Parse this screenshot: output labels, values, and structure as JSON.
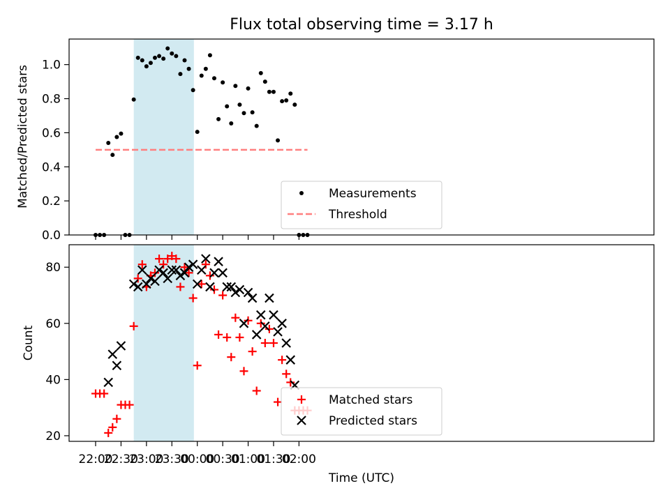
{
  "figure": {
    "title": "Flux total observing time = 3.17 h",
    "shaded_color": "#add8e6"
  },
  "chart_data": [
    {
      "type": "scatter",
      "panel": "top",
      "ylabel": "Matched/Predicted stars",
      "xlabel": "",
      "ylim": [
        0,
        1.15
      ],
      "yticks": [
        0.0,
        0.2,
        0.4,
        0.6,
        0.8,
        1.0
      ],
      "ytick_labels": [
        "0.0",
        "0.2",
        "0.4",
        "0.6",
        "0.8",
        "1.0"
      ],
      "shaded_region": [
        "22:45",
        "23:56"
      ],
      "legend": {
        "location": "lower-center",
        "entries": [
          "Measurements",
          "Threshold"
        ]
      },
      "series": [
        {
          "name": "Measurements",
          "marker": "dot",
          "color": "#000000",
          "points": [
            [
              "22:00",
              0.0
            ],
            [
              "22:05",
              0.0
            ],
            [
              "22:10",
              0.0
            ],
            [
              "22:15",
              0.54
            ],
            [
              "22:20",
              0.47
            ],
            [
              "22:25",
              0.575
            ],
            [
              "22:30",
              0.595
            ],
            [
              "22:35",
              0.0
            ],
            [
              "22:40",
              0.0
            ],
            [
              "22:45",
              0.795
            ],
            [
              "22:50",
              1.04
            ],
            [
              "22:55",
              1.025
            ],
            [
              "23:00",
              0.99
            ],
            [
              "23:05",
              1.01
            ],
            [
              "23:10",
              1.04
            ],
            [
              "23:15",
              1.05
            ],
            [
              "23:20",
              1.035
            ],
            [
              "23:25",
              1.095
            ],
            [
              "23:30",
              1.065
            ],
            [
              "23:35",
              1.05
            ],
            [
              "23:40",
              0.945
            ],
            [
              "23:45",
              1.025
            ],
            [
              "23:50",
              0.975
            ],
            [
              "23:55",
              0.85
            ],
            [
              "00:00",
              0.605
            ],
            [
              "00:05",
              0.935
            ],
            [
              "00:10",
              0.975
            ],
            [
              "00:15",
              1.055
            ],
            [
              "00:20",
              0.92
            ],
            [
              "00:25",
              0.68
            ],
            [
              "00:30",
              0.895
            ],
            [
              "00:35",
              0.755
            ],
            [
              "00:40",
              0.655
            ],
            [
              "00:45",
              0.875
            ],
            [
              "00:50",
              0.765
            ],
            [
              "00:55",
              0.715
            ],
            [
              "01:00",
              0.86
            ],
            [
              "01:05",
              0.72
            ],
            [
              "01:10",
              0.64
            ],
            [
              "01:15",
              0.95
            ],
            [
              "01:20",
              0.9
            ],
            [
              "01:25",
              0.84
            ],
            [
              "01:30",
              0.84
            ],
            [
              "01:35",
              0.555
            ],
            [
              "01:40",
              0.785
            ],
            [
              "01:45",
              0.79
            ],
            [
              "01:50",
              0.83
            ],
            [
              "01:55",
              0.765
            ],
            [
              "02:00",
              0.0
            ],
            [
              "02:05",
              0.0
            ],
            [
              "02:10",
              0.0
            ]
          ]
        },
        {
          "name": "Threshold",
          "marker": "dashed-line",
          "color": "#ff7f7f",
          "points": [
            [
              "22:00",
              0.5
            ],
            [
              "02:10",
              0.5
            ]
          ]
        }
      ]
    },
    {
      "type": "scatter",
      "panel": "bottom",
      "ylabel": "Count",
      "xlabel": "Time (UTC)",
      "ylim": [
        18,
        88
      ],
      "yticks": [
        20,
        40,
        60,
        80
      ],
      "ytick_labels": [
        "20",
        "40",
        "60",
        "80"
      ],
      "xticks": [
        "22:00",
        "22:30",
        "23:00",
        "23:30",
        "00:00",
        "00:30",
        "01:00",
        "01:30",
        "02:00"
      ],
      "shaded_region": [
        "22:45",
        "23:56"
      ],
      "legend": {
        "location": "lower-center",
        "entries": [
          "Matched stars",
          "Predicted stars"
        ]
      },
      "series": [
        {
          "name": "Matched stars",
          "marker": "plus",
          "color": "#ff0000",
          "points": [
            [
              "22:00",
              35
            ],
            [
              "22:05",
              35
            ],
            [
              "22:10",
              35
            ],
            [
              "22:15",
              21
            ],
            [
              "22:20",
              23
            ],
            [
              "22:25",
              26
            ],
            [
              "22:30",
              31
            ],
            [
              "22:35",
              31
            ],
            [
              "22:40",
              31
            ],
            [
              "22:45",
              59
            ],
            [
              "22:50",
              76
            ],
            [
              "22:55",
              81
            ],
            [
              "23:00",
              73
            ],
            [
              "23:05",
              77
            ],
            [
              "23:10",
              78
            ],
            [
              "23:15",
              83
            ],
            [
              "23:20",
              81
            ],
            [
              "23:25",
              83
            ],
            [
              "23:30",
              84
            ],
            [
              "23:35",
              83
            ],
            [
              "23:40",
              73
            ],
            [
              "23:45",
              80
            ],
            [
              "23:50",
              78
            ],
            [
              "23:55",
              69
            ],
            [
              "00:00",
              45
            ],
            [
              "00:05",
              74
            ],
            [
              "00:10",
              81
            ],
            [
              "00:15",
              77
            ],
            [
              "00:20",
              72
            ],
            [
              "00:25",
              56
            ],
            [
              "00:30",
              70
            ],
            [
              "00:35",
              55
            ],
            [
              "00:40",
              48
            ],
            [
              "00:45",
              62
            ],
            [
              "00:50",
              55
            ],
            [
              "00:55",
              43
            ],
            [
              "01:00",
              61
            ],
            [
              "01:05",
              50
            ],
            [
              "01:10",
              36
            ],
            [
              "01:15",
              60
            ],
            [
              "01:20",
              53
            ],
            [
              "01:25",
              58
            ],
            [
              "01:30",
              53
            ],
            [
              "01:35",
              32
            ],
            [
              "01:40",
              47
            ],
            [
              "01:45",
              42
            ],
            [
              "01:50",
              39
            ],
            [
              "01:55",
              29
            ],
            [
              "02:00",
              29
            ],
            [
              "02:05",
              29
            ],
            [
              "02:10",
              29
            ]
          ]
        },
        {
          "name": "Predicted stars",
          "marker": "x",
          "color": "#000000",
          "points": [
            [
              "22:15",
              39
            ],
            [
              "22:20",
              49
            ],
            [
              "22:25",
              45
            ],
            [
              "22:30",
              52
            ],
            [
              "22:45",
              74
            ],
            [
              "22:50",
              73
            ],
            [
              "22:55",
              79
            ],
            [
              "23:00",
              74
            ],
            [
              "23:05",
              76
            ],
            [
              "23:10",
              75
            ],
            [
              "23:15",
              79
            ],
            [
              "23:20",
              78
            ],
            [
              "23:25",
              76
            ],
            [
              "23:30",
              79
            ],
            [
              "23:35",
              79
            ],
            [
              "23:40",
              77
            ],
            [
              "23:45",
              78
            ],
            [
              "23:50",
              80
            ],
            [
              "23:55",
              81
            ],
            [
              "00:00",
              74
            ],
            [
              "00:05",
              79
            ],
            [
              "00:10",
              83
            ],
            [
              "00:15",
              73
            ],
            [
              "00:20",
              78
            ],
            [
              "00:25",
              82
            ],
            [
              "00:30",
              78
            ],
            [
              "00:35",
              73
            ],
            [
              "00:40",
              73
            ],
            [
              "00:45",
              71
            ],
            [
              "00:50",
              72
            ],
            [
              "00:55",
              60
            ],
            [
              "01:00",
              71
            ],
            [
              "01:05",
              69
            ],
            [
              "01:10",
              56
            ],
            [
              "01:15",
              63
            ],
            [
              "01:20",
              59
            ],
            [
              "01:25",
              69
            ],
            [
              "01:30",
              63
            ],
            [
              "01:35",
              57
            ],
            [
              "01:40",
              60
            ],
            [
              "01:45",
              53
            ],
            [
              "01:50",
              47
            ],
            [
              "01:55",
              38
            ]
          ]
        }
      ]
    }
  ]
}
